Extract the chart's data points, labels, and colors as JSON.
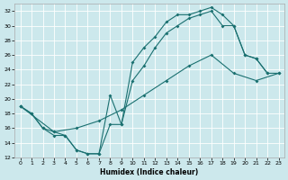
{
  "xlabel": "Humidex (Indice chaleur)",
  "xlim": [
    -0.5,
    23.5
  ],
  "ylim": [
    12,
    33
  ],
  "yticks": [
    12,
    14,
    16,
    18,
    20,
    22,
    24,
    26,
    28,
    30,
    32
  ],
  "xticks": [
    0,
    1,
    2,
    3,
    4,
    5,
    6,
    7,
    8,
    9,
    10,
    11,
    12,
    13,
    14,
    15,
    16,
    17,
    18,
    19,
    20,
    21,
    22,
    23
  ],
  "bg_color": "#cce8ec",
  "line_color": "#1a7070",
  "grid_color": "#ffffff",
  "line1_x": [
    0,
    1,
    2,
    3,
    4,
    5,
    6,
    7,
    8,
    9,
    10,
    11,
    12,
    13,
    14,
    15,
    16,
    17,
    18,
    19,
    20,
    21,
    22
  ],
  "line1_y": [
    19.0,
    18.0,
    16.0,
    15.0,
    15.0,
    13.0,
    12.5,
    12.5,
    20.5,
    16.5,
    25.0,
    27.0,
    28.5,
    30.5,
    31.5,
    31.5,
    32.0,
    32.5,
    31.5,
    30.0,
    26.0,
    25.5,
    23.5
  ],
  "line2_x": [
    0,
    1,
    2,
    3,
    4,
    5,
    6,
    7,
    8,
    9,
    10,
    11,
    12,
    13,
    14,
    15,
    16,
    17,
    18,
    19,
    20,
    21,
    22,
    23
  ],
  "line2_y": [
    19.0,
    18.0,
    16.0,
    15.5,
    15.0,
    13.0,
    12.5,
    12.5,
    16.5,
    16.5,
    22.5,
    24.5,
    27.0,
    29.0,
    30.0,
    31.0,
    31.5,
    32.0,
    30.0,
    30.0,
    26.0,
    25.5,
    23.5,
    23.5
  ],
  "line3_x": [
    0,
    3,
    5,
    7,
    9,
    11,
    13,
    15,
    17,
    19,
    21,
    23
  ],
  "line3_y": [
    19.0,
    15.5,
    16.0,
    17.0,
    18.5,
    20.5,
    22.5,
    24.5,
    26.0,
    23.5,
    22.5,
    23.5
  ]
}
